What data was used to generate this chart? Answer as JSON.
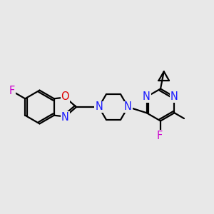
{
  "bg_color": "#e8e8e8",
  "bond_color": "#000000",
  "N_color": "#1a1aff",
  "O_color": "#dd0000",
  "F_color": "#cc00cc",
  "line_width": 1.6,
  "font_size": 10.5,
  "figsize": [
    3.0,
    3.0
  ],
  "dpi": 100,
  "xlim": [
    0,
    10
  ],
  "ylim": [
    0,
    10
  ]
}
